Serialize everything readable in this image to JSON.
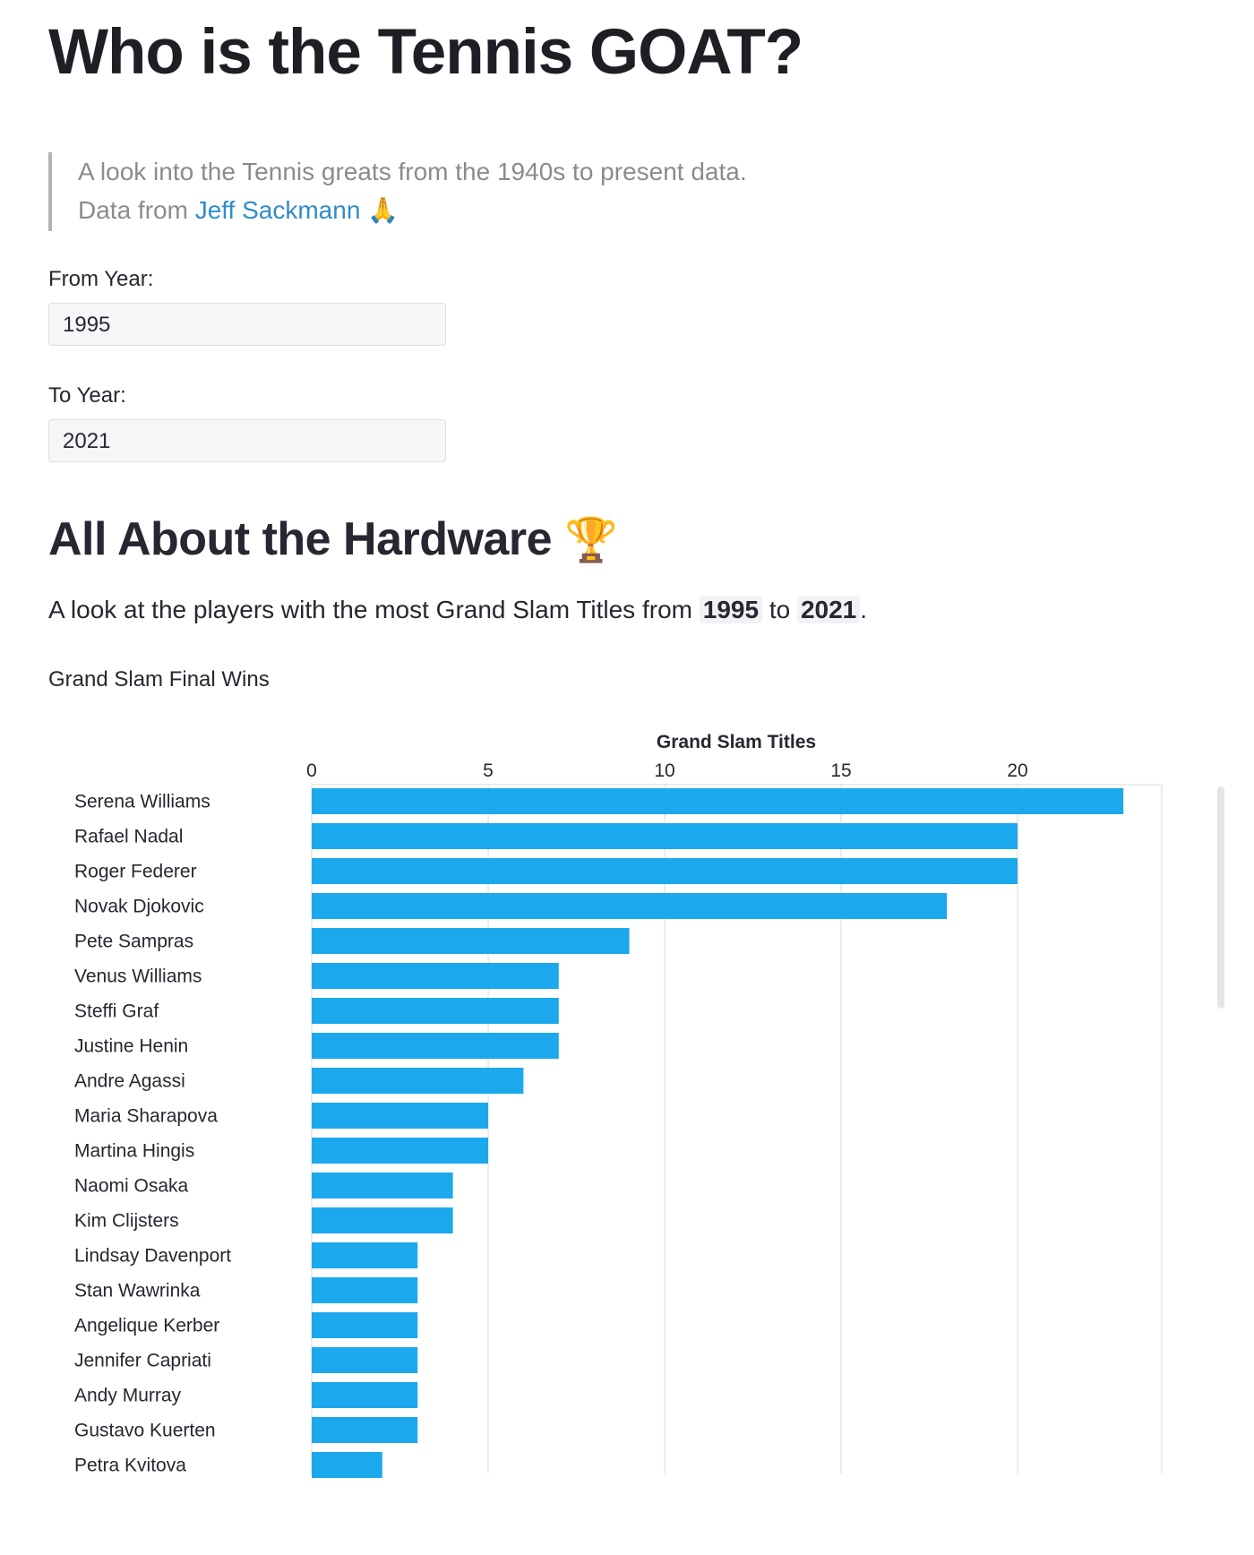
{
  "header": {
    "title": "Who is the Tennis GOAT?",
    "quote_line1": "A look into the Tennis greats from the 1940s to present data.",
    "quote_prefix": "Data from ",
    "quote_link": "Jeff Sackmann",
    "quote_emoji": "🙏"
  },
  "filters": {
    "from_label": "From Year:",
    "from_value": "1995",
    "to_label": "To Year:",
    "to_value": "2021"
  },
  "section": {
    "title": "All About the Hardware",
    "title_emoji": "🏆",
    "desc_prefix": "A look at the players with the most Grand Slam Titles from ",
    "desc_from": "1995",
    "desc_mid": " to ",
    "desc_to": "2021",
    "desc_suffix": "."
  },
  "chart_heading": "Grand Slam Final Wins",
  "chart_data": {
    "type": "bar",
    "orientation": "horizontal",
    "xlabel": "Grand Slam Titles",
    "xlim": [
      0,
      24
    ],
    "x_ticks": [
      0,
      5,
      10,
      15,
      20
    ],
    "grid": true,
    "bar_color": "#1ca8ed",
    "categories": [
      "Serena Williams",
      "Rafael Nadal",
      "Roger Federer",
      "Novak Djokovic",
      "Pete Sampras",
      "Venus Williams",
      "Steffi Graf",
      "Justine Henin",
      "Andre Agassi",
      "Maria Sharapova",
      "Martina Hingis",
      "Naomi Osaka",
      "Kim Clijsters",
      "Lindsay Davenport",
      "Stan Wawrinka",
      "Angelique Kerber",
      "Jennifer Capriati",
      "Andy Murray",
      "Gustavo Kuerten",
      "Petra Kvitova"
    ],
    "values": [
      23,
      20,
      20,
      18,
      9,
      7,
      7,
      7,
      6,
      5,
      5,
      4,
      4,
      3,
      3,
      3,
      3,
      3,
      3,
      2
    ]
  }
}
